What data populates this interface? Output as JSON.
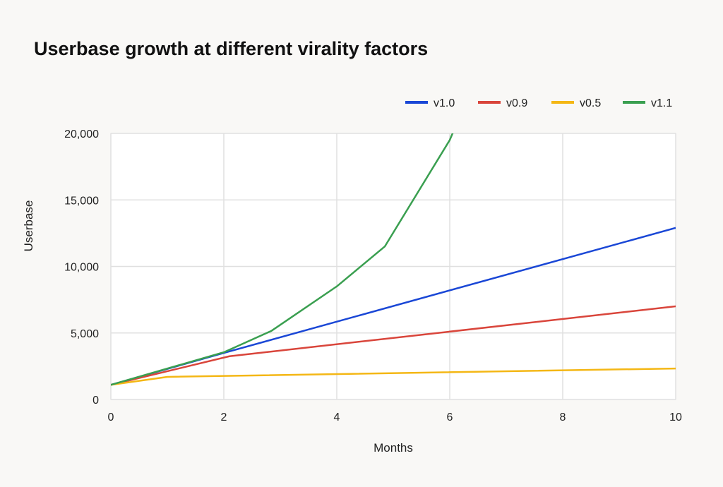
{
  "chart_data": {
    "type": "line",
    "title": "Userbase growth at different virality factors",
    "xlabel": "Months",
    "ylabel": "Userbase",
    "xlim": [
      0,
      10
    ],
    "ylim": [
      0,
      20000
    ],
    "xticks": [
      0,
      2,
      4,
      6,
      8,
      10
    ],
    "yticks": [
      0,
      5000,
      10000,
      15000,
      20000
    ],
    "ytick_labels": [
      "0",
      "5,000",
      "10,000",
      "15,000",
      "20,000"
    ],
    "grid": true,
    "legend_position": "top-right",
    "series": [
      {
        "name": "v1.0",
        "color": "#1a47d6",
        "x": [
          0,
          2,
          10
        ],
        "y": [
          1100,
          3500,
          12900
        ]
      },
      {
        "name": "v0.9",
        "color": "#d9453b",
        "x": [
          0,
          2.1,
          10
        ],
        "y": [
          1100,
          3250,
          7000
        ]
      },
      {
        "name": "v0.5",
        "color": "#f4b715",
        "x": [
          0,
          1,
          10
        ],
        "y": [
          1100,
          1700,
          2330
        ]
      },
      {
        "name": "v1.1",
        "color": "#3a9f50",
        "x": [
          0,
          2,
          2.84,
          4,
          4.85,
          6,
          6.1
        ],
        "y": [
          1100,
          3550,
          5150,
          8500,
          11500,
          19500,
          20500
        ]
      }
    ]
  }
}
